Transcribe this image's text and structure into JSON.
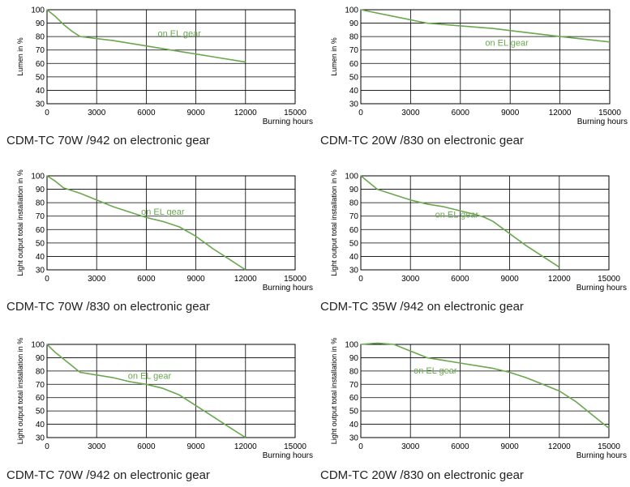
{
  "series_color": "#6aa84f",
  "chart_data": [
    {
      "type": "line",
      "caption": "CDM-TC 70W /942 on electronic gear",
      "ylabel": "Lumen in %",
      "xlabel": "Burning hours",
      "xlim": [
        0,
        15000
      ],
      "ylim": [
        30,
        100
      ],
      "xticks": [
        0,
        3000,
        6000,
        9000,
        12000,
        15000
      ],
      "yticks": [
        30,
        40,
        50,
        60,
        70,
        80,
        90,
        100
      ],
      "grid": true,
      "annotation": "on EL gear",
      "series": [
        {
          "x": [
            0,
            500,
            1000,
            1500,
            2000,
            4000,
            6000,
            8000,
            10000,
            12000
          ],
          "y": [
            100,
            95,
            89,
            84,
            80,
            77,
            73,
            69,
            65,
            61
          ]
        }
      ]
    },
    {
      "type": "line",
      "caption": "CDM-TC 20W /830 on electronic gear",
      "ylabel": "Lumen in %",
      "xlabel": "Burning hours",
      "xlim": [
        0,
        15000
      ],
      "ylim": [
        30,
        100
      ],
      "xticks": [
        0,
        3000,
        6000,
        9000,
        12000,
        15000
      ],
      "yticks": [
        30,
        40,
        50,
        60,
        70,
        80,
        90,
        100
      ],
      "grid": true,
      "annotation": "on EL gear",
      "series": [
        {
          "x": [
            0,
            2000,
            4000,
            6000,
            8000,
            10000,
            12000,
            15000
          ],
          "y": [
            100,
            95,
            90,
            88,
            86,
            83,
            80,
            76
          ]
        }
      ]
    },
    {
      "type": "line",
      "caption": "CDM-TC 70W /830 on electronic gear",
      "ylabel": "Light output total installation in %",
      "xlabel": "Burning hours",
      "xlim": [
        0,
        15000
      ],
      "ylim": [
        30,
        100
      ],
      "xticks": [
        0,
        3000,
        6000,
        9000,
        12000,
        15000
      ],
      "yticks": [
        30,
        40,
        50,
        60,
        70,
        80,
        90,
        100
      ],
      "grid": true,
      "annotation": "on EL gear",
      "series": [
        {
          "x": [
            0,
            500,
            1000,
            2000,
            3000,
            4000,
            5000,
            6000,
            7000,
            8000,
            9000,
            10000,
            11000,
            12000
          ],
          "y": [
            100,
            96,
            91,
            87,
            82,
            77,
            73,
            69,
            66,
            62,
            55,
            46,
            38,
            30
          ]
        }
      ]
    },
    {
      "type": "line",
      "caption": "CDM-TC 35W /942 on electronic gear",
      "ylabel": "Light output total installation in %",
      "xlabel": "Burning hours",
      "xlim": [
        0,
        15000
      ],
      "ylim": [
        30,
        100
      ],
      "xticks": [
        0,
        3000,
        6000,
        9000,
        12000,
        15000
      ],
      "yticks": [
        30,
        40,
        50,
        60,
        70,
        80,
        90,
        100
      ],
      "grid": true,
      "annotation": "on EL gear",
      "series": [
        {
          "x": [
            0,
            500,
            1000,
            2000,
            3000,
            4000,
            5000,
            6000,
            7000,
            7500,
            8000,
            9000,
            10000,
            11000,
            12000
          ],
          "y": [
            100,
            95,
            90,
            86,
            82,
            79,
            77,
            74,
            71,
            69,
            66,
            57,
            48,
            40,
            32
          ]
        }
      ]
    },
    {
      "type": "line",
      "caption": "CDM-TC 70W /942 on electronic gear",
      "ylabel": "Light output total installation in %",
      "xlabel": "Burning hours",
      "xlim": [
        0,
        15000
      ],
      "ylim": [
        30,
        100
      ],
      "xticks": [
        0,
        3000,
        6000,
        9000,
        12000,
        15000
      ],
      "yticks": [
        30,
        40,
        50,
        60,
        70,
        80,
        90,
        100
      ],
      "grid": true,
      "annotation": "on EL gear",
      "series": [
        {
          "x": [
            0,
            500,
            1000,
            1500,
            2000,
            3000,
            4000,
            5000,
            6000,
            7000,
            8000,
            9000,
            10000,
            11000,
            12000
          ],
          "y": [
            100,
            94,
            89,
            84,
            79,
            77,
            75,
            72,
            70,
            67,
            62,
            54,
            46,
            38,
            30
          ]
        }
      ]
    },
    {
      "type": "line",
      "caption": "CDM-TC 20W /830 on electronic gear",
      "ylabel": "Light output total installation in %",
      "xlabel": "Burning hours",
      "xlim": [
        0,
        15000
      ],
      "ylim": [
        30,
        100
      ],
      "xticks": [
        0,
        3000,
        6000,
        9000,
        12000,
        15000
      ],
      "yticks": [
        30,
        40,
        50,
        60,
        70,
        80,
        90,
        100
      ],
      "grid": true,
      "annotation": "on EL gear",
      "series": [
        {
          "x": [
            0,
            1000,
            2000,
            3000,
            4000,
            5000,
            6000,
            7000,
            8000,
            9000,
            10000,
            11000,
            12000,
            13000,
            14000,
            15000
          ],
          "y": [
            100,
            101,
            100,
            95,
            90,
            88,
            86,
            84,
            82,
            79,
            75,
            70,
            65,
            57,
            47,
            37
          ]
        }
      ]
    }
  ]
}
